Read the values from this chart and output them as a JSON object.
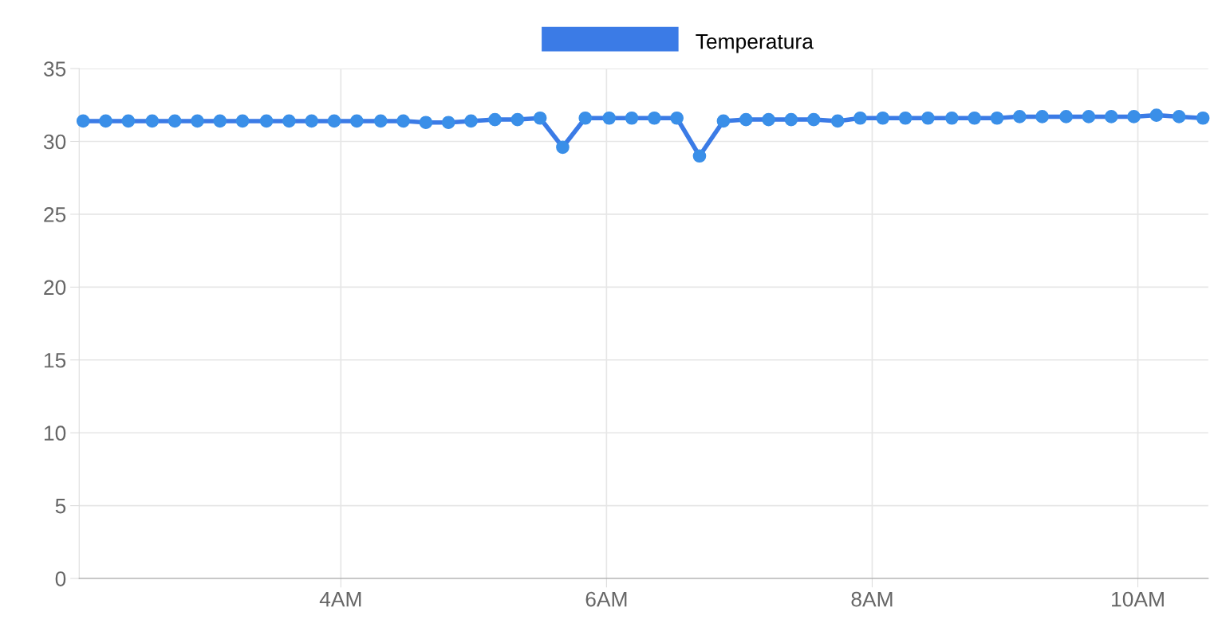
{
  "chart_data": {
    "type": "line",
    "x": [
      2.06,
      2.23,
      2.4,
      2.58,
      2.75,
      2.92,
      3.09,
      3.26,
      3.44,
      3.61,
      3.78,
      3.95,
      4.12,
      4.3,
      4.47,
      4.64,
      4.81,
      4.98,
      5.16,
      5.33,
      5.5,
      5.67,
      5.84,
      6.02,
      6.19,
      6.36,
      6.53,
      6.7,
      6.88,
      7.05,
      7.22,
      7.39,
      7.56,
      7.74,
      7.91,
      8.08,
      8.25,
      8.42,
      8.6,
      8.77,
      8.94,
      9.11,
      9.28,
      9.46,
      9.63,
      9.8,
      9.97,
      10.14,
      10.31,
      10.49
    ],
    "series": [
      {
        "name": "Temperatura",
        "color": "#3b7be6",
        "values": [
          31.4,
          31.4,
          31.4,
          31.4,
          31.4,
          31.4,
          31.4,
          31.4,
          31.4,
          31.4,
          31.4,
          31.4,
          31.4,
          31.4,
          31.4,
          31.3,
          31.3,
          31.4,
          31.5,
          31.5,
          31.6,
          29.6,
          31.6,
          31.6,
          31.6,
          31.6,
          31.6,
          29.0,
          31.4,
          31.5,
          31.5,
          31.5,
          31.5,
          31.4,
          31.6,
          31.6,
          31.6,
          31.6,
          31.6,
          31.6,
          31.6,
          31.7,
          31.7,
          31.7,
          31.7,
          31.7,
          31.7,
          31.8,
          31.7,
          31.6
        ]
      }
    ],
    "xlim": [
      2.03,
      10.53
    ],
    "xticks": [
      {
        "value": 4,
        "label": "4AM"
      },
      {
        "value": 6,
        "label": "6AM"
      },
      {
        "value": 8,
        "label": "8AM"
      },
      {
        "value": 10,
        "label": "10AM"
      }
    ],
    "ylim": [
      0,
      35
    ],
    "yticks": [
      0,
      5,
      10,
      15,
      20,
      25,
      30,
      35
    ],
    "grid": true,
    "legend": "top",
    "marker": "circle",
    "line_style": "solid"
  }
}
